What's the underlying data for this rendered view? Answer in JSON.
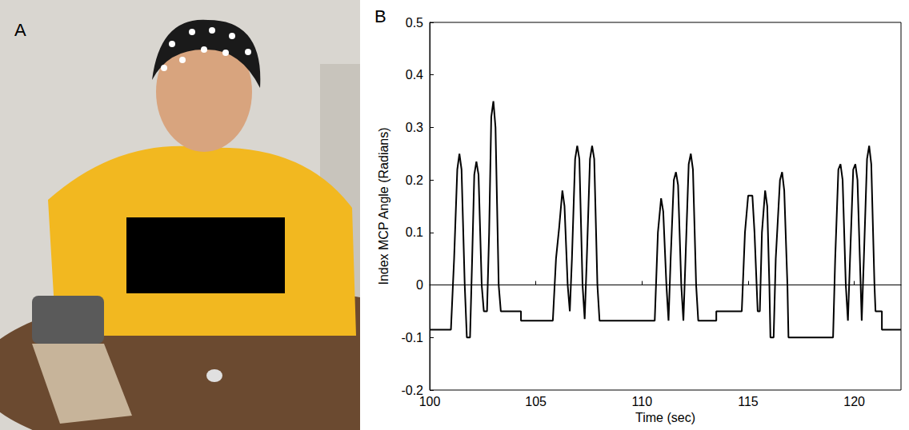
{
  "panel_labels": [
    "A",
    "B"
  ],
  "chart_data": {
    "type": "line",
    "x_label": "Time (sec)",
    "y_label": "Index MCP Angle (Radians)",
    "color": "#000000",
    "grid": false,
    "xlim": [
      100,
      122.2
    ],
    "xticks": [
      100,
      105,
      110,
      115,
      120
    ],
    "ylim": [
      -0.2,
      0.5
    ],
    "yticks": [
      -0.2,
      -0.1,
      0,
      0.1,
      0.2,
      0.3,
      0.4,
      0.5
    ],
    "x": [
      100,
      101.0,
      101.15,
      101.3,
      101.4,
      101.5,
      101.65,
      101.75,
      101.9,
      102.0,
      102.1,
      102.2,
      102.3,
      102.45,
      102.55,
      102.7,
      102.8,
      102.9,
      103.0,
      103.1,
      103.25,
      103.35,
      104.3,
      104.3,
      105.8,
      105.95,
      106.1,
      106.25,
      106.35,
      106.5,
      106.6,
      106.7,
      106.85,
      106.95,
      107.05,
      107.2,
      107.3,
      107.4,
      107.55,
      107.65,
      107.75,
      107.9,
      108.0,
      110.6,
      110.75,
      110.9,
      111.0,
      111.15,
      111.25,
      111.35,
      111.5,
      111.6,
      111.7,
      111.85,
      111.95,
      112.05,
      112.2,
      112.3,
      112.4,
      112.55,
      112.65,
      113.5,
      113.5,
      114.7,
      114.85,
      115.0,
      115.2,
      115.3,
      115.45,
      115.55,
      115.65,
      115.8,
      115.9,
      116.0,
      116.05,
      116.2,
      116.3,
      116.5,
      116.6,
      116.7,
      116.85,
      116.9,
      119.0,
      119.1,
      119.25,
      119.35,
      119.45,
      119.6,
      119.7,
      119.8,
      119.95,
      120.05,
      120.15,
      120.3,
      120.35,
      120.45,
      120.6,
      120.7,
      120.8,
      120.95,
      121.0,
      121.3,
      121.3,
      122.2
    ],
    "values": [
      -0.085,
      -0.085,
      0.05,
      0.22,
      0.25,
      0.22,
      0.0,
      -0.1,
      -0.1,
      0.05,
      0.21,
      0.235,
      0.21,
      0.0,
      -0.05,
      -0.05,
      0.1,
      0.32,
      0.35,
      0.3,
      0.0,
      -0.05,
      -0.05,
      -0.068,
      -0.068,
      0.05,
      0.11,
      0.18,
      0.15,
      0.0,
      -0.05,
      0.05,
      0.24,
      0.265,
      0.24,
      0.0,
      -0.065,
      0.05,
      0.24,
      0.265,
      0.24,
      0.0,
      -0.068,
      -0.068,
      0.1,
      0.165,
      0.14,
      0.0,
      -0.068,
      0.05,
      0.2,
      0.215,
      0.19,
      0.0,
      -0.068,
      0.05,
      0.23,
      0.25,
      0.22,
      0.0,
      -0.068,
      -0.068,
      -0.05,
      -0.05,
      0.1,
      0.17,
      0.17,
      0.1,
      -0.05,
      -0.05,
      0.1,
      0.18,
      0.15,
      0.0,
      -0.1,
      -0.1,
      0.05,
      0.2,
      0.215,
      0.18,
      0.0,
      -0.1,
      -0.1,
      0.05,
      0.22,
      0.23,
      0.2,
      0.0,
      -0.068,
      0.05,
      0.22,
      0.23,
      0.2,
      0.0,
      -0.068,
      0.05,
      0.24,
      0.265,
      0.23,
      0.0,
      -0.05,
      -0.05,
      -0.085,
      -0.085
    ]
  }
}
